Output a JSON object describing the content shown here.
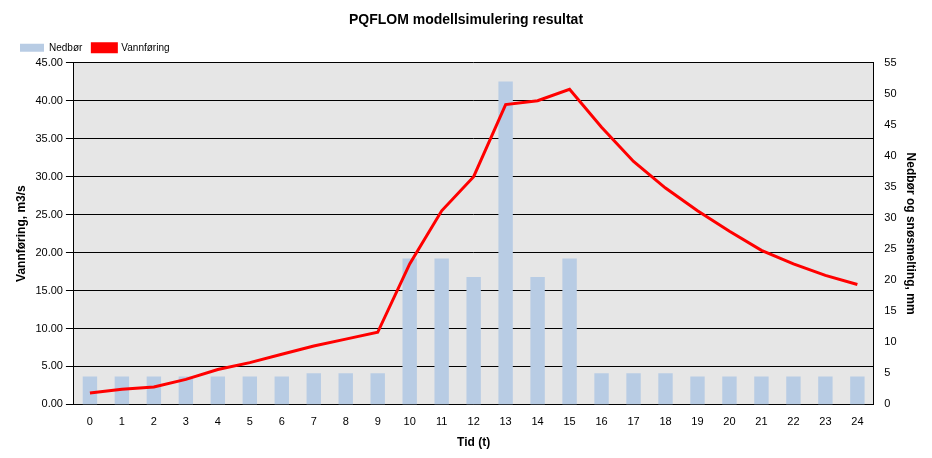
{
  "chart_data": {
    "type": "bar",
    "title": "PQFLOM modellsimulering resultat",
    "x_label": "Tid (t)",
    "y_label": "Vannføring, m3/s",
    "y2_label": "Nedbør og snøsmelting, mm",
    "categories": [
      "0",
      "1",
      "2",
      "3",
      "4",
      "5",
      "6",
      "7",
      "8",
      "9",
      "10",
      "11",
      "12",
      "13",
      "14",
      "15",
      "16",
      "17",
      "18",
      "19",
      "20",
      "21",
      "22",
      "23",
      "24"
    ],
    "series": [
      {
        "name": "Nedbør",
        "type": "bar",
        "axis": "y2",
        "color": "#b8cce4",
        "values": [
          4.5,
          4.5,
          4.5,
          4.5,
          4.5,
          4.5,
          4.5,
          5,
          5,
          5,
          23.5,
          23.5,
          20.5,
          52,
          20.5,
          23.5,
          5,
          5,
          5,
          4.5,
          4.5,
          4.5,
          4.5,
          4.5,
          4.5
        ]
      },
      {
        "name": "Vannføring",
        "type": "line",
        "axis": "y",
        "color": "#ff0000",
        "values": [
          1.5,
          2,
          2.3,
          3.3,
          4.6,
          5.5,
          6.6,
          7.7,
          8.6,
          9.5,
          18.5,
          25.5,
          30,
          39.5,
          40,
          41.5,
          36.5,
          32,
          28.5,
          25.5,
          22.8,
          20.3,
          18.5,
          17,
          15.8
        ]
      }
    ],
    "ylim": [
      0,
      45
    ],
    "yticks": [
      {
        "value": 0,
        "label": "0.00"
      },
      {
        "value": 5,
        "label": "5.00"
      },
      {
        "value": 10,
        "label": "10.00"
      },
      {
        "value": 15,
        "label": "15.00"
      },
      {
        "value": 20,
        "label": "20.00"
      },
      {
        "value": 25,
        "label": "25.00"
      },
      {
        "value": 30,
        "label": "30.00"
      },
      {
        "value": 35,
        "label": "35.00"
      },
      {
        "value": 40,
        "label": "40.00"
      },
      {
        "value": 45,
        "label": "45.00"
      }
    ],
    "y2lim": [
      0,
      55
    ],
    "y2ticks": [
      0,
      5,
      10,
      15,
      20,
      25,
      30,
      35,
      40,
      45,
      50,
      55
    ],
    "grid": true,
    "legend": "upper left"
  }
}
